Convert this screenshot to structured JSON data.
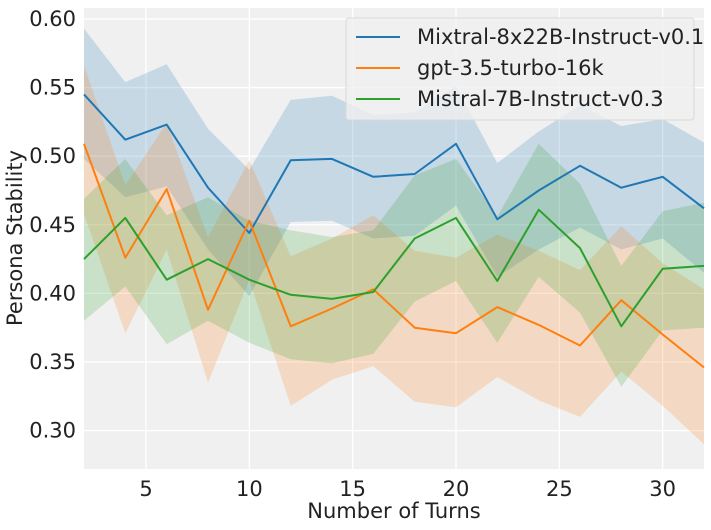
{
  "chart_data": {
    "type": "line",
    "title": "",
    "xlabel": "Number of Turns",
    "ylabel": "Persona Stability",
    "xlim": [
      2,
      32
    ],
    "ylim": [
      0.272,
      0.608
    ],
    "x_ticks": [
      5,
      10,
      15,
      20,
      25,
      30
    ],
    "x_tick_labels": [
      "5",
      "10",
      "15",
      "20",
      "25",
      "30"
    ],
    "y_ticks": [
      0.3,
      0.35,
      0.4,
      0.45,
      0.5,
      0.55,
      0.6
    ],
    "y_tick_labels": [
      "0.30",
      "0.35",
      "0.40",
      "0.45",
      "0.50",
      "0.55",
      "0.60"
    ],
    "grid": true,
    "legend_position": "top-right",
    "x": [
      2,
      4,
      6,
      8,
      10,
      12,
      14,
      16,
      18,
      20,
      22,
      24,
      26,
      28,
      30,
      32
    ],
    "series": [
      {
        "name": "Mixtral-8x22B-Instruct-v0.1",
        "color": "#1f77b4",
        "values": [
          0.545,
          0.512,
          0.523,
          0.477,
          0.444,
          0.497,
          0.498,
          0.485,
          0.487,
          0.509,
          0.454,
          0.475,
          0.493,
          0.477,
          0.485,
          0.462
        ],
        "lower": [
          0.498,
          0.47,
          0.478,
          0.432,
          0.398,
          0.452,
          0.453,
          0.44,
          0.442,
          0.464,
          0.412,
          0.432,
          0.448,
          0.432,
          0.44,
          0.415
        ],
        "upper": [
          0.593,
          0.554,
          0.567,
          0.52,
          0.49,
          0.541,
          0.544,
          0.53,
          0.532,
          0.551,
          0.495,
          0.518,
          0.537,
          0.522,
          0.527,
          0.51
        ]
      },
      {
        "name": "gpt-3.5-turbo-16k",
        "color": "#ff7f0e",
        "values": [
          0.509,
          0.426,
          0.476,
          0.388,
          0.453,
          0.376,
          0.389,
          0.403,
          0.375,
          0.371,
          0.39,
          0.377,
          0.362,
          0.395,
          0.37,
          0.346
        ],
        "lower": [
          0.458,
          0.371,
          0.432,
          0.335,
          0.41,
          0.318,
          0.337,
          0.347,
          0.321,
          0.317,
          0.339,
          0.322,
          0.31,
          0.343,
          0.318,
          0.29
        ],
        "upper": [
          0.566,
          0.479,
          0.524,
          0.441,
          0.497,
          0.427,
          0.44,
          0.457,
          0.431,
          0.426,
          0.443,
          0.431,
          0.417,
          0.449,
          0.422,
          0.403
        ]
      },
      {
        "name": "Mistral-7B-Instruct-v0.3",
        "color": "#2ca02c",
        "values": [
          0.425,
          0.455,
          0.41,
          0.425,
          0.41,
          0.399,
          0.396,
          0.401,
          0.44,
          0.455,
          0.409,
          0.461,
          0.433,
          0.376,
          0.418,
          0.42
        ],
        "lower": [
          0.38,
          0.405,
          0.363,
          0.38,
          0.364,
          0.352,
          0.349,
          0.356,
          0.394,
          0.409,
          0.364,
          0.412,
          0.386,
          0.332,
          0.373,
          0.375
        ],
        "upper": [
          0.469,
          0.498,
          0.457,
          0.47,
          0.453,
          0.446,
          0.441,
          0.446,
          0.486,
          0.498,
          0.456,
          0.509,
          0.48,
          0.42,
          0.46,
          0.466
        ]
      }
    ]
  }
}
